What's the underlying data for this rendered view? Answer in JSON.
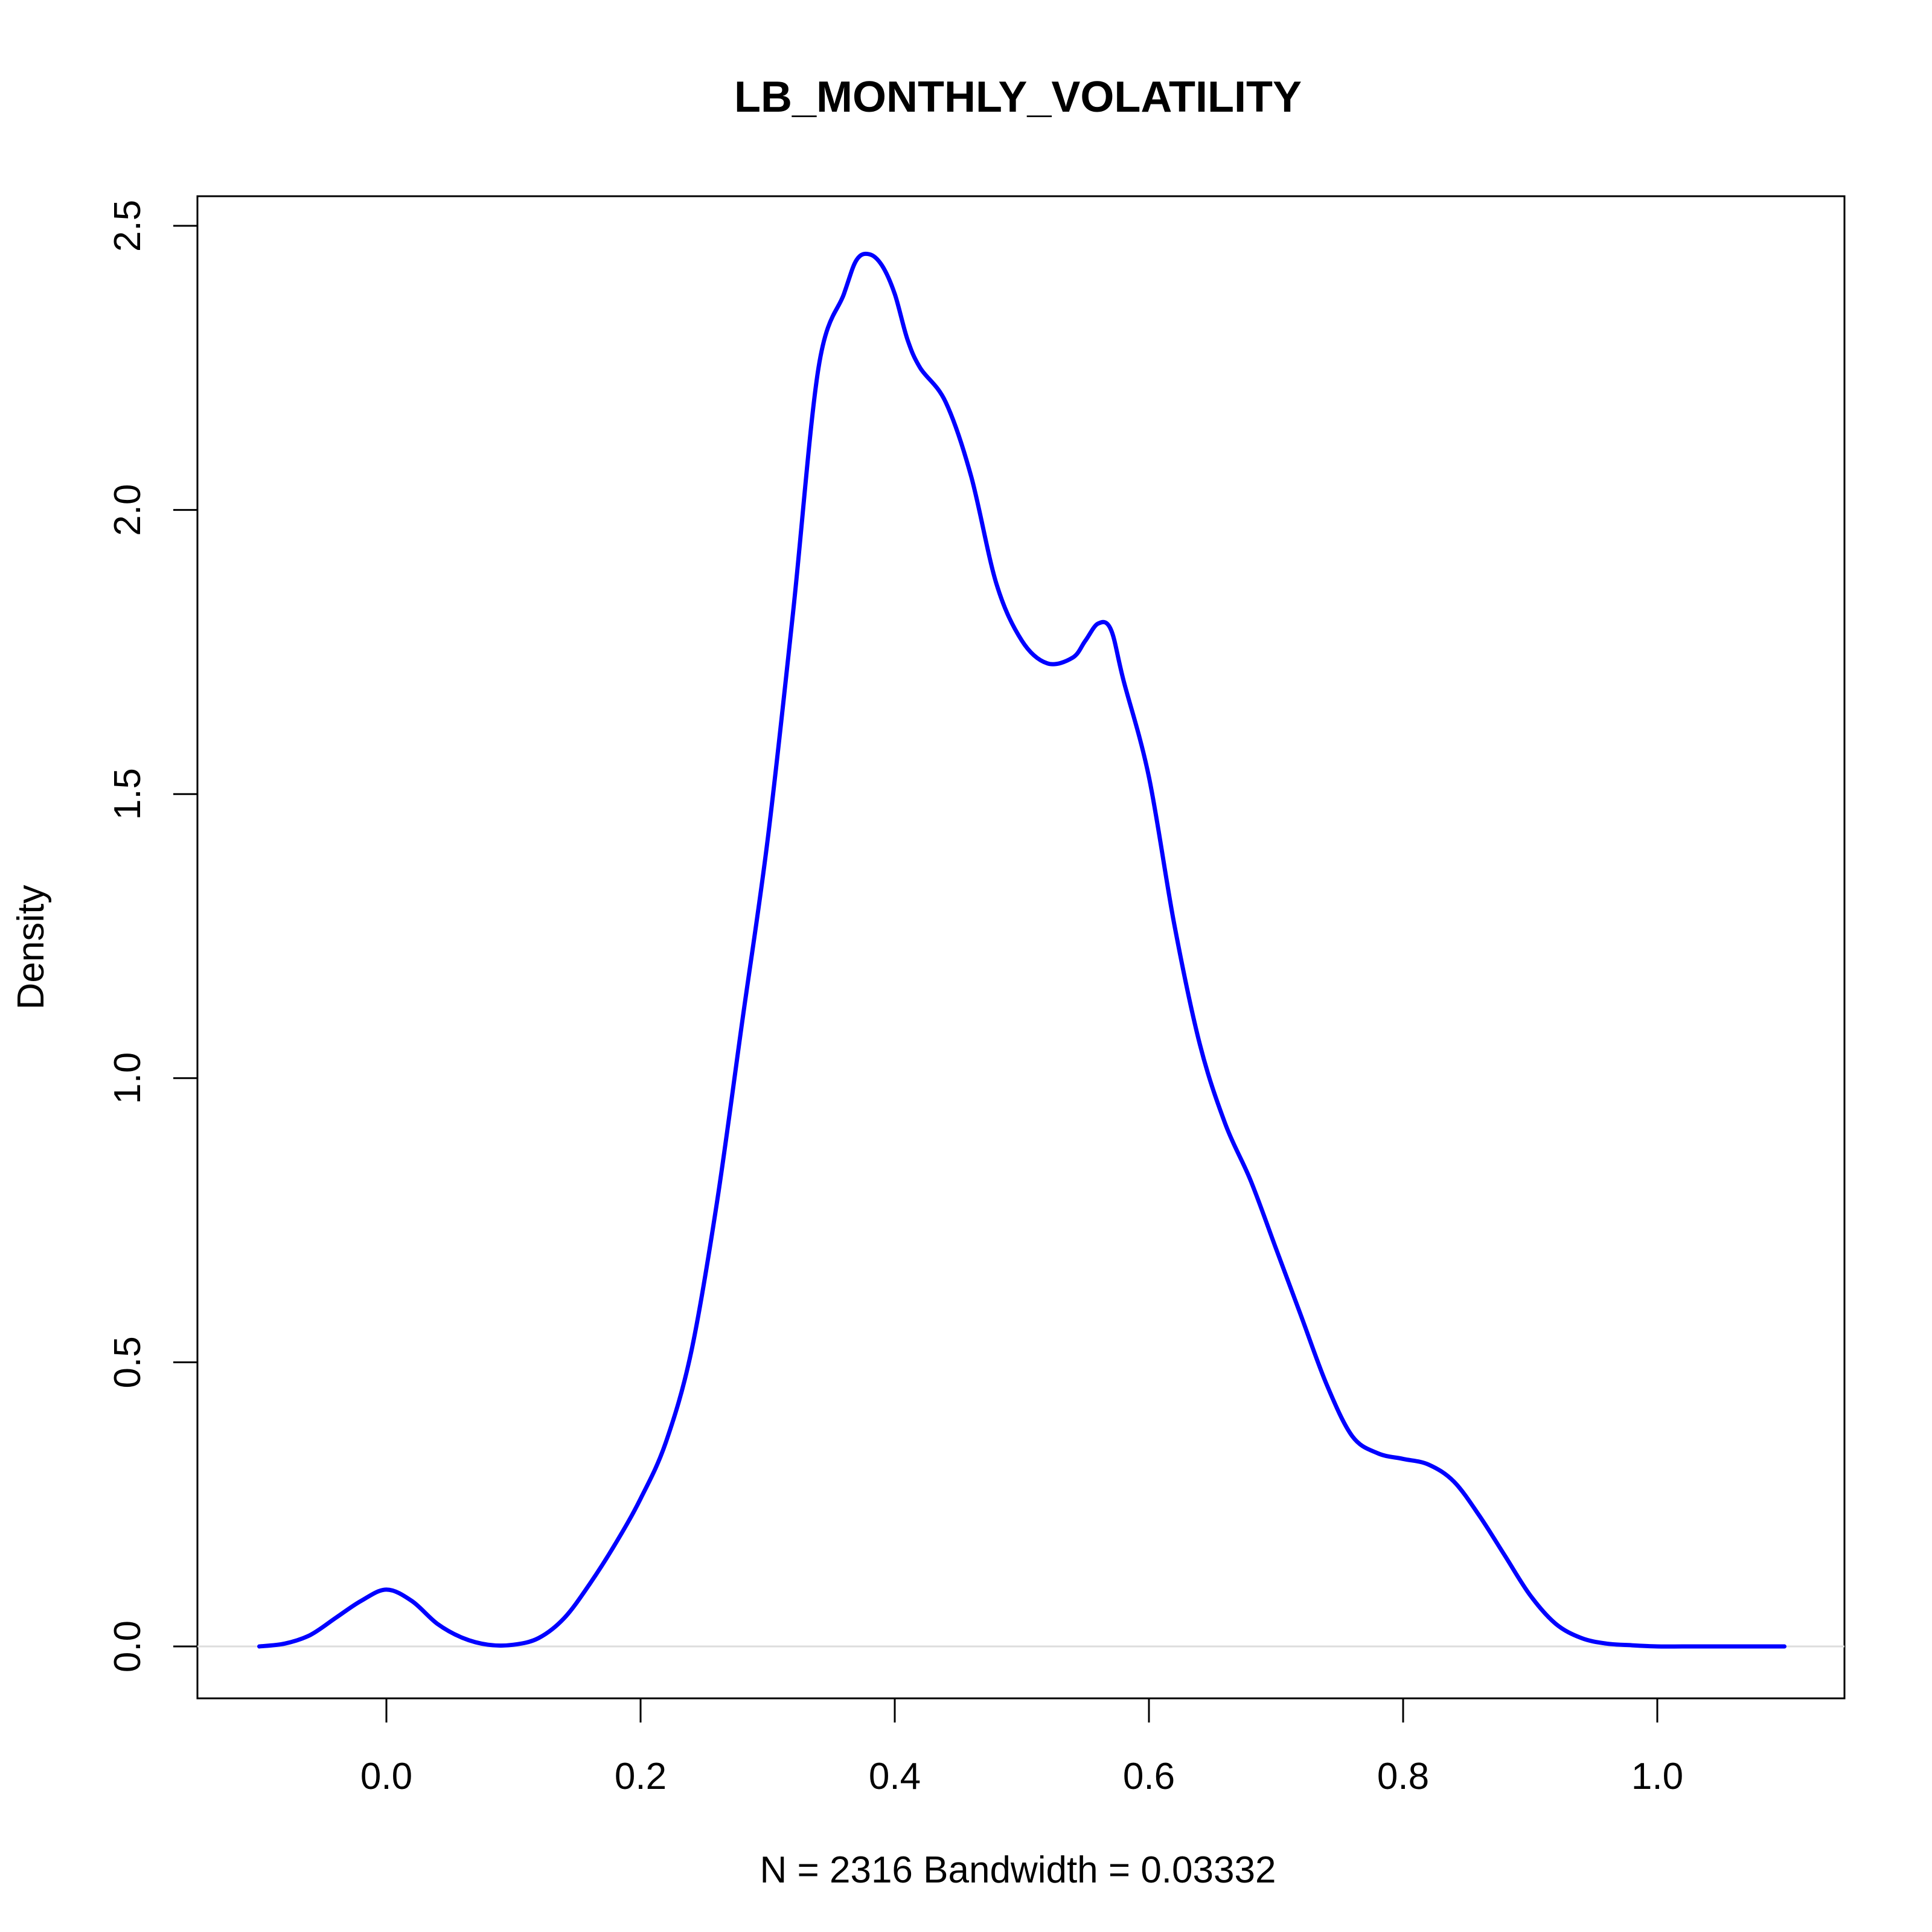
{
  "chart_data": {
    "type": "line",
    "title": "LB_MONTHLY_VOLATILITY",
    "xlabel": "N = 2316   Bandwidth = 0.03332",
    "ylabel": "Density",
    "xlim": [
      -0.1,
      1.1
    ],
    "ylim": [
      0,
      2.5
    ],
    "x_ticks": [
      "0.0",
      "0.2",
      "0.4",
      "0.6",
      "0.8",
      "1.0"
    ],
    "y_ticks": [
      "0.0",
      "0.5",
      "1.0",
      "1.5",
      "2.0",
      "2.5"
    ],
    "grid": false,
    "legend": "none",
    "line_color": "#0000FF",
    "baseline_color": "#DDDDDD",
    "series": [
      {
        "x": [
          -0.1,
          -0.08,
          -0.06,
          -0.04,
          -0.02,
          0.0,
          0.02,
          0.04,
          0.06,
          0.08,
          0.1,
          0.12,
          0.14,
          0.16,
          0.18,
          0.2,
          0.22,
          0.24,
          0.26,
          0.28,
          0.3,
          0.32,
          0.34,
          0.36,
          0.37,
          0.38,
          0.39,
          0.4,
          0.41,
          0.42,
          0.44,
          0.46,
          0.48,
          0.5,
          0.52,
          0.54,
          0.55,
          0.56,
          0.57,
          0.58,
          0.6,
          0.62,
          0.64,
          0.66,
          0.68,
          0.7,
          0.72,
          0.74,
          0.76,
          0.78,
          0.8,
          0.82,
          0.84,
          0.86,
          0.88,
          0.9,
          0.92,
          0.94,
          0.96,
          0.98,
          1.0,
          1.02,
          1.04,
          1.06,
          1.08,
          1.1
        ],
        "y": [
          0.0,
          0.005,
          0.02,
          0.05,
          0.08,
          0.1,
          0.08,
          0.04,
          0.015,
          0.003,
          0.003,
          0.015,
          0.05,
          0.11,
          0.18,
          0.26,
          0.36,
          0.52,
          0.78,
          1.1,
          1.42,
          1.82,
          2.25,
          2.38,
          2.44,
          2.45,
          2.43,
          2.38,
          2.3,
          2.25,
          2.19,
          2.06,
          1.87,
          1.77,
          1.73,
          1.74,
          1.77,
          1.8,
          1.79,
          1.7,
          1.53,
          1.27,
          1.06,
          0.92,
          0.82,
          0.7,
          0.58,
          0.46,
          0.37,
          0.34,
          0.33,
          0.32,
          0.29,
          0.23,
          0.16,
          0.09,
          0.04,
          0.015,
          0.005,
          0.002,
          0.0,
          0.0,
          0.0,
          0.0,
          0.0,
          0.0
        ]
      }
    ]
  }
}
